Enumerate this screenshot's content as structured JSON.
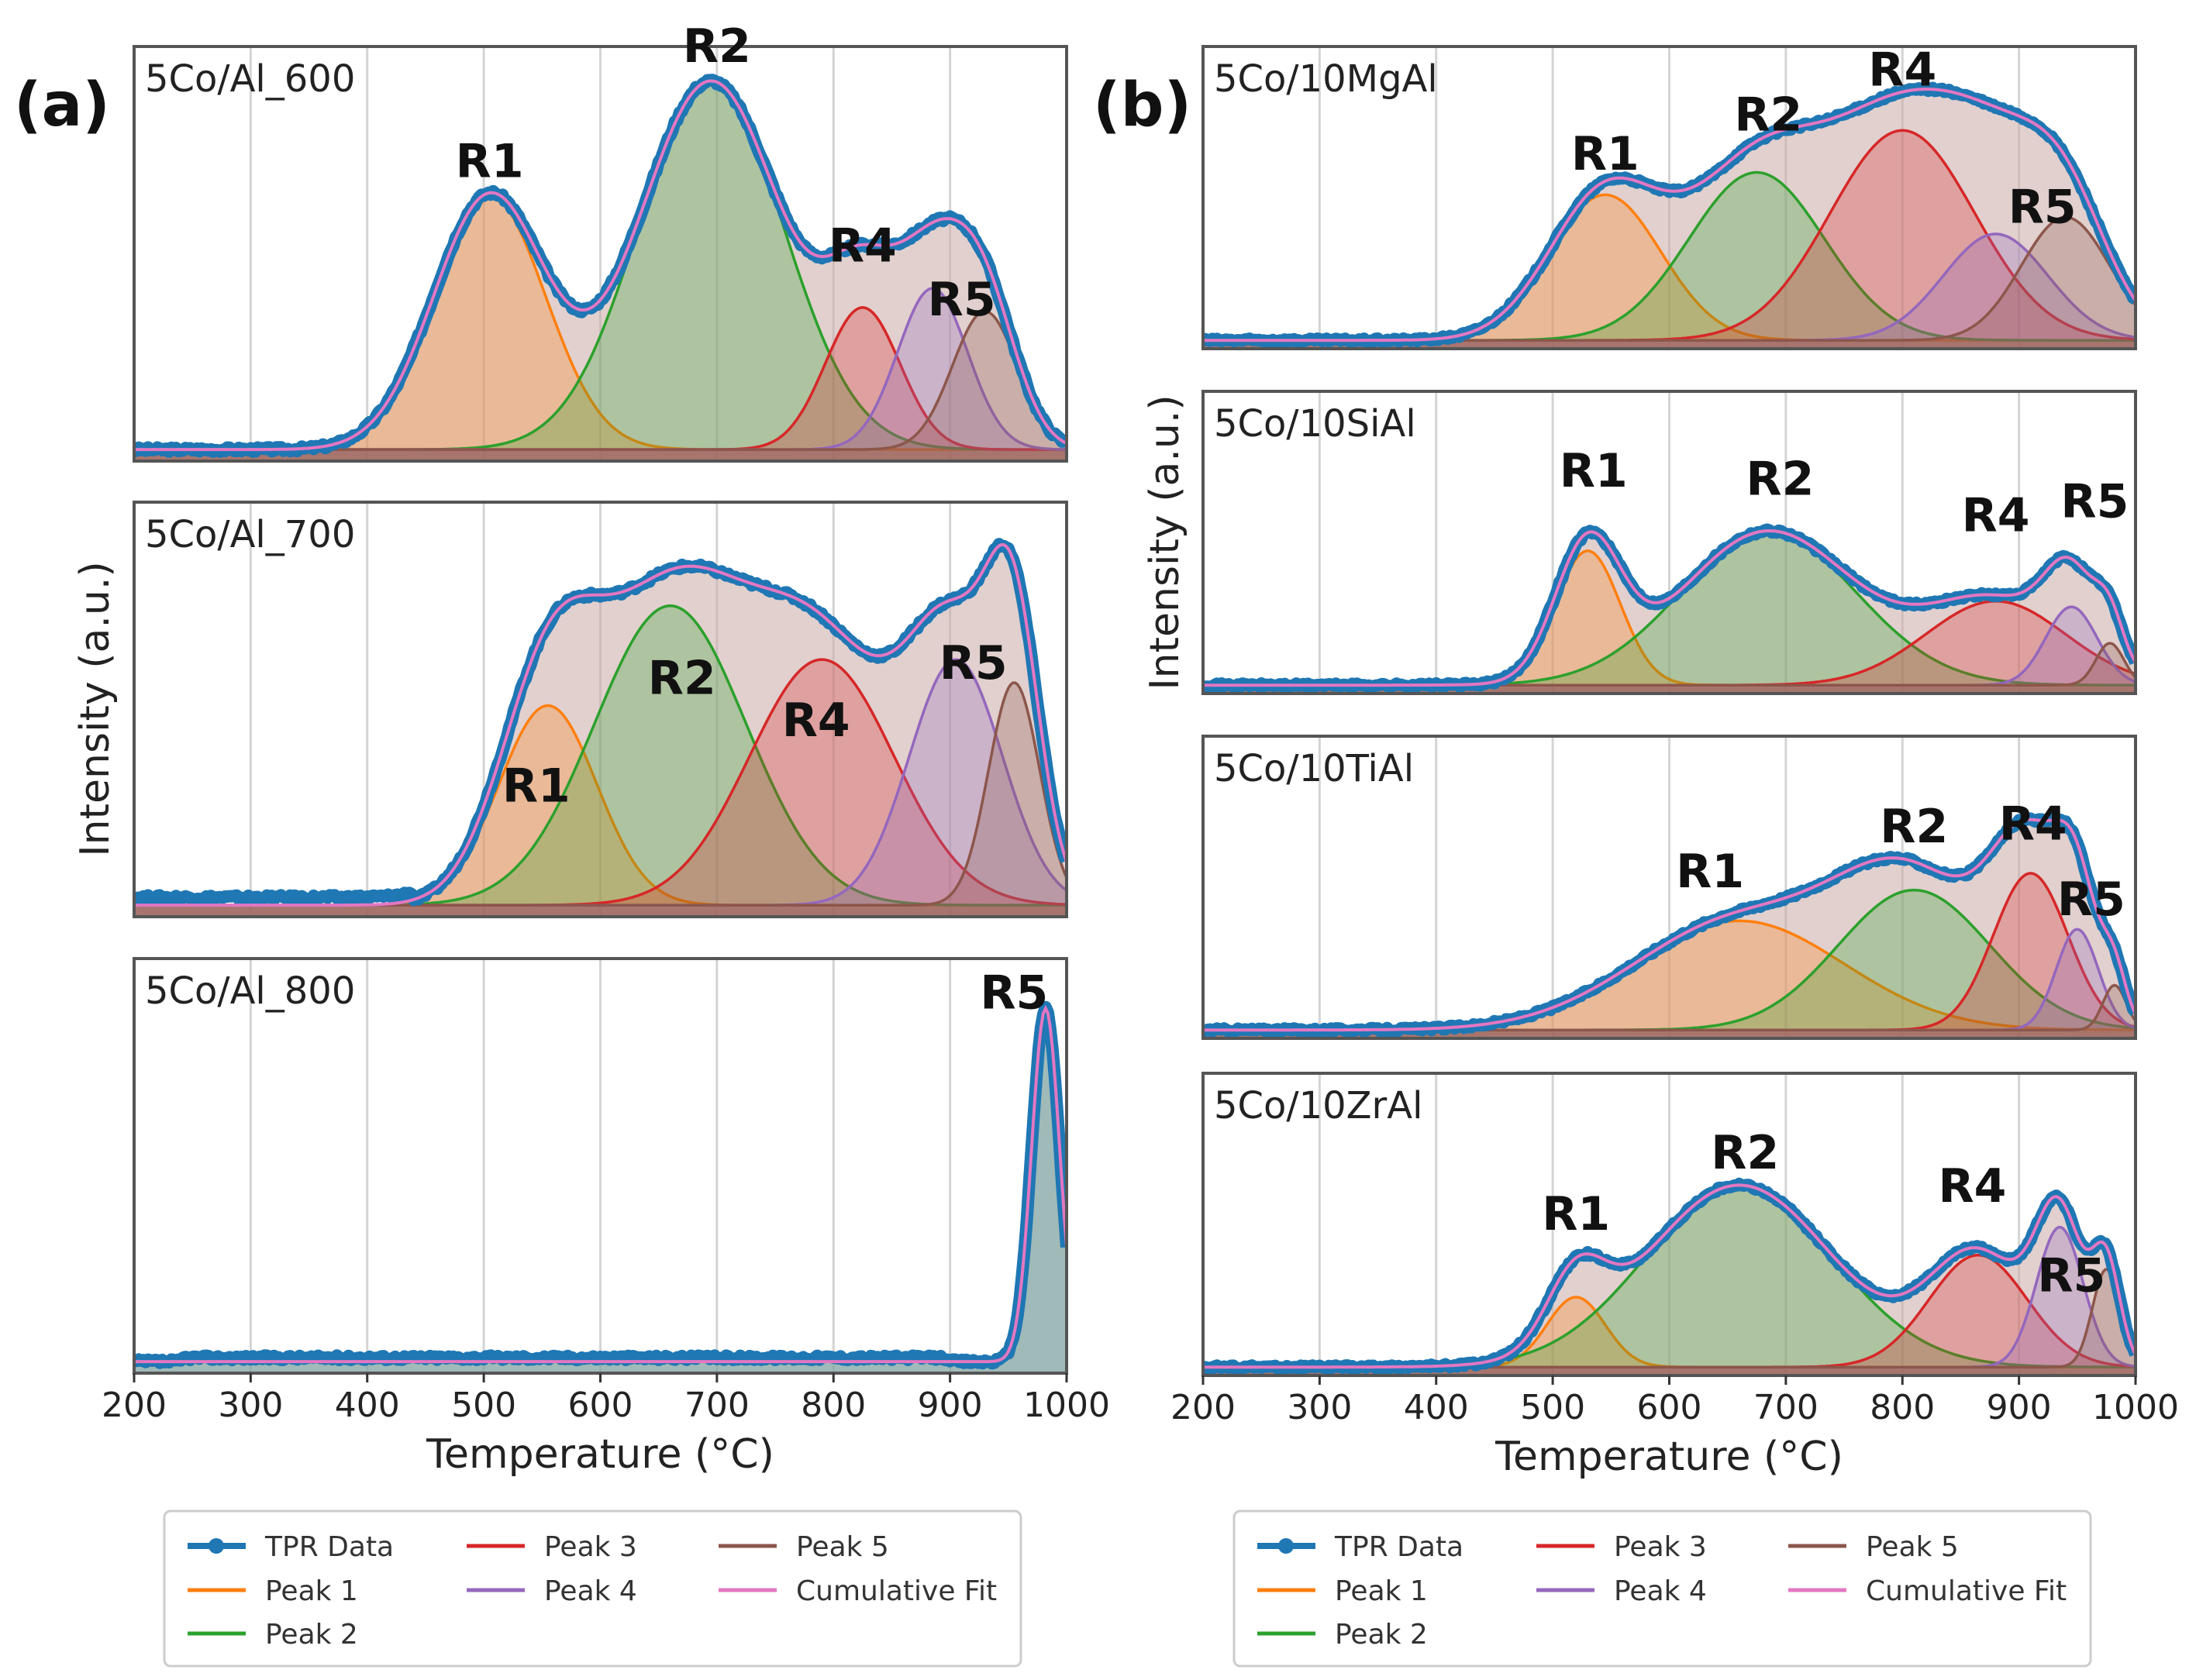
{
  "figure": {
    "panels": [
      {
        "id": "a",
        "label": "(a)"
      },
      {
        "id": "b",
        "label": "(b)"
      }
    ]
  },
  "legend": {
    "entries": [
      {
        "name": "TPR Data",
        "color": "#1f77b4"
      },
      {
        "name": "Peak 1",
        "color": "#ff7f0e"
      },
      {
        "name": "Peak 2",
        "color": "#2ca02c"
      },
      {
        "name": "Peak 3",
        "color": "#d62728"
      },
      {
        "name": "Peak 4",
        "color": "#9467bd"
      },
      {
        "name": "Peak 5",
        "color": "#8c564b"
      },
      {
        "name": "Cumulative Fit",
        "color": "#e377c2"
      }
    ]
  },
  "colors": {
    "tpr": "#1f77b4",
    "peak1": "#ff7f0e",
    "peak2": "#2ca02c",
    "peak3": "#d62728",
    "peak4": "#9467bd",
    "peak5": "#8c564b",
    "cumulative": "#e377c2",
    "envelope_fill": "#c9aaa6"
  },
  "chart_data": [
    {
      "type": "line",
      "panel": "a",
      "title": "5Co/Al_600",
      "xlabel": "",
      "ylabel": "",
      "xlim": [
        200,
        1000
      ],
      "ylim": [
        0,
        1.08
      ],
      "grid": "vertical",
      "series": [
        {
          "name": "Peak 1",
          "center": 505,
          "height": 0.66,
          "width": 48
        },
        {
          "name": "Peak 2",
          "center": 695,
          "height": 0.96,
          "width": 62
        },
        {
          "name": "Peak 3",
          "center": 825,
          "height": 0.37,
          "width": 32
        },
        {
          "name": "Peak 4",
          "center": 885,
          "height": 0.42,
          "width": 30
        },
        {
          "name": "Peak 5",
          "center": 930,
          "height": 0.36,
          "width": 28
        }
      ],
      "region_labels": [
        {
          "text": "R1",
          "x": 505,
          "y": 0.74
        },
        {
          "text": "R2",
          "x": 700,
          "y": 1.04
        },
        {
          "text": "R4",
          "x": 825,
          "y": 0.52
        },
        {
          "text": "R5",
          "x": 910,
          "y": 0.38
        }
      ]
    },
    {
      "type": "line",
      "panel": "a",
      "title": "5Co/Al_700",
      "xlabel": "",
      "ylabel": "Intensity (a.u.)",
      "xlim": [
        200,
        1000
      ],
      "ylim": [
        0,
        1.08
      ],
      "grid": "vertical",
      "series": [
        {
          "name": "Peak 1",
          "center": 555,
          "height": 0.52,
          "width": 42
        },
        {
          "name": "Peak 2",
          "center": 660,
          "height": 0.78,
          "width": 65
        },
        {
          "name": "Peak 3",
          "center": 790,
          "height": 0.64,
          "width": 62
        },
        {
          "name": "Peak 4",
          "center": 905,
          "height": 0.64,
          "width": 40
        },
        {
          "name": "Peak 5",
          "center": 955,
          "height": 0.58,
          "width": 22
        }
      ],
      "region_labels": [
        {
          "text": "R1",
          "x": 545,
          "y": 0.3
        },
        {
          "text": "R2",
          "x": 670,
          "y": 0.58
        },
        {
          "text": "R4",
          "x": 785,
          "y": 0.47
        },
        {
          "text": "R5",
          "x": 920,
          "y": 0.62
        }
      ]
    },
    {
      "type": "line",
      "panel": "a",
      "title": "5Co/Al_800",
      "xlabel": "Temperature (°C)",
      "ylabel": "",
      "xlim": [
        200,
        1000
      ],
      "ylim": [
        0,
        1.08
      ],
      "grid": "vertical",
      "xticks": [
        200,
        300,
        400,
        500,
        600,
        700,
        800,
        900,
        1000
      ],
      "series": [
        {
          "name": "Peak 1",
          "center": 982,
          "height": 0.92,
          "width": 12
        }
      ],
      "region_labels": [
        {
          "text": "R5",
          "x": 955,
          "y": 0.95
        }
      ]
    },
    {
      "type": "line",
      "panel": "b",
      "title": "5Co/10MgAl",
      "xlabel": "",
      "ylabel": "",
      "xlim": [
        200,
        1000
      ],
      "ylim": [
        0,
        1.08
      ],
      "grid": "vertical",
      "series": [
        {
          "name": "Peak 1",
          "center": 545,
          "height": 0.52,
          "width": 48
        },
        {
          "name": "Peak 2",
          "center": 675,
          "height": 0.6,
          "width": 58
        },
        {
          "name": "Peak 3",
          "center": 800,
          "height": 0.75,
          "width": 62
        },
        {
          "name": "Peak 4",
          "center": 880,
          "height": 0.38,
          "width": 45
        },
        {
          "name": "Peak 5",
          "center": 940,
          "height": 0.44,
          "width": 38
        }
      ],
      "region_labels": [
        {
          "text": "R1",
          "x": 545,
          "y": 0.64
        },
        {
          "text": "R2",
          "x": 685,
          "y": 0.78
        },
        {
          "text": "R4",
          "x": 800,
          "y": 0.94
        },
        {
          "text": "R5",
          "x": 920,
          "y": 0.45
        }
      ]
    },
    {
      "type": "line",
      "panel": "b",
      "title": "5Co/10SiAl",
      "xlabel": "",
      "ylabel": "Intensity (a.u.)",
      "xlim": [
        200,
        1000
      ],
      "ylim": [
        0,
        1.08
      ],
      "grid": "vertical",
      "series": [
        {
          "name": "Peak 1",
          "center": 530,
          "height": 0.48,
          "width": 28
        },
        {
          "name": "Peak 2",
          "center": 685,
          "height": 0.55,
          "width": 75
        },
        {
          "name": "Peak 3",
          "center": 880,
          "height": 0.3,
          "width": 60
        },
        {
          "name": "Peak 4",
          "center": 945,
          "height": 0.28,
          "width": 22
        },
        {
          "name": "Peak 5",
          "center": 978,
          "height": 0.15,
          "width": 12
        }
      ],
      "region_labels": [
        {
          "text": "R1",
          "x": 535,
          "y": 0.74
        },
        {
          "text": "R2",
          "x": 695,
          "y": 0.71
        },
        {
          "text": "R4",
          "x": 880,
          "y": 0.58
        },
        {
          "text": "R5",
          "x": 965,
          "y": 0.63
        }
      ]
    },
    {
      "type": "line",
      "panel": "b",
      "title": "5Co/10TiAl",
      "xlabel": "",
      "ylabel": "",
      "xlim": [
        200,
        1000
      ],
      "ylim": [
        0,
        1.08
      ],
      "grid": "vertical",
      "series": [
        {
          "name": "Peak 1",
          "center": 660,
          "height": 0.39,
          "width": 90
        },
        {
          "name": "Peak 2",
          "center": 810,
          "height": 0.5,
          "width": 65
        },
        {
          "name": "Peak 3",
          "center": 910,
          "height": 0.56,
          "width": 32
        },
        {
          "name": "Peak 4",
          "center": 950,
          "height": 0.36,
          "width": 18
        },
        {
          "name": "Peak 5",
          "center": 982,
          "height": 0.16,
          "width": 10
        }
      ],
      "region_labels": [
        {
          "text": "R1",
          "x": 635,
          "y": 0.54
        },
        {
          "text": "R2",
          "x": 810,
          "y": 0.7
        },
        {
          "text": "R4",
          "x": 912,
          "y": 0.71
        },
        {
          "text": "R5",
          "x": 962,
          "y": 0.44
        }
      ]
    },
    {
      "type": "line",
      "panel": "b",
      "title": "5Co/10ZrAl",
      "xlabel": "Temperature (°C)",
      "ylabel": "",
      "xlim": [
        200,
        1000
      ],
      "ylim": [
        0,
        1.08
      ],
      "grid": "vertical",
      "xticks": [
        200,
        300,
        400,
        500,
        600,
        700,
        800,
        900,
        1000
      ],
      "series": [
        {
          "name": "Peak 1",
          "center": 520,
          "height": 0.25,
          "width": 25
        },
        {
          "name": "Peak 2",
          "center": 660,
          "height": 0.65,
          "width": 80
        },
        {
          "name": "Peak 3",
          "center": 865,
          "height": 0.4,
          "width": 42
        },
        {
          "name": "Peak 4",
          "center": 935,
          "height": 0.5,
          "width": 20
        },
        {
          "name": "Peak 5",
          "center": 975,
          "height": 0.35,
          "width": 12
        }
      ],
      "region_labels": [
        {
          "text": "R1",
          "x": 520,
          "y": 0.52
        },
        {
          "text": "R2",
          "x": 665,
          "y": 0.74
        },
        {
          "text": "R4",
          "x": 860,
          "y": 0.62
        },
        {
          "text": "R5",
          "x": 945,
          "y": 0.3
        }
      ]
    }
  ]
}
